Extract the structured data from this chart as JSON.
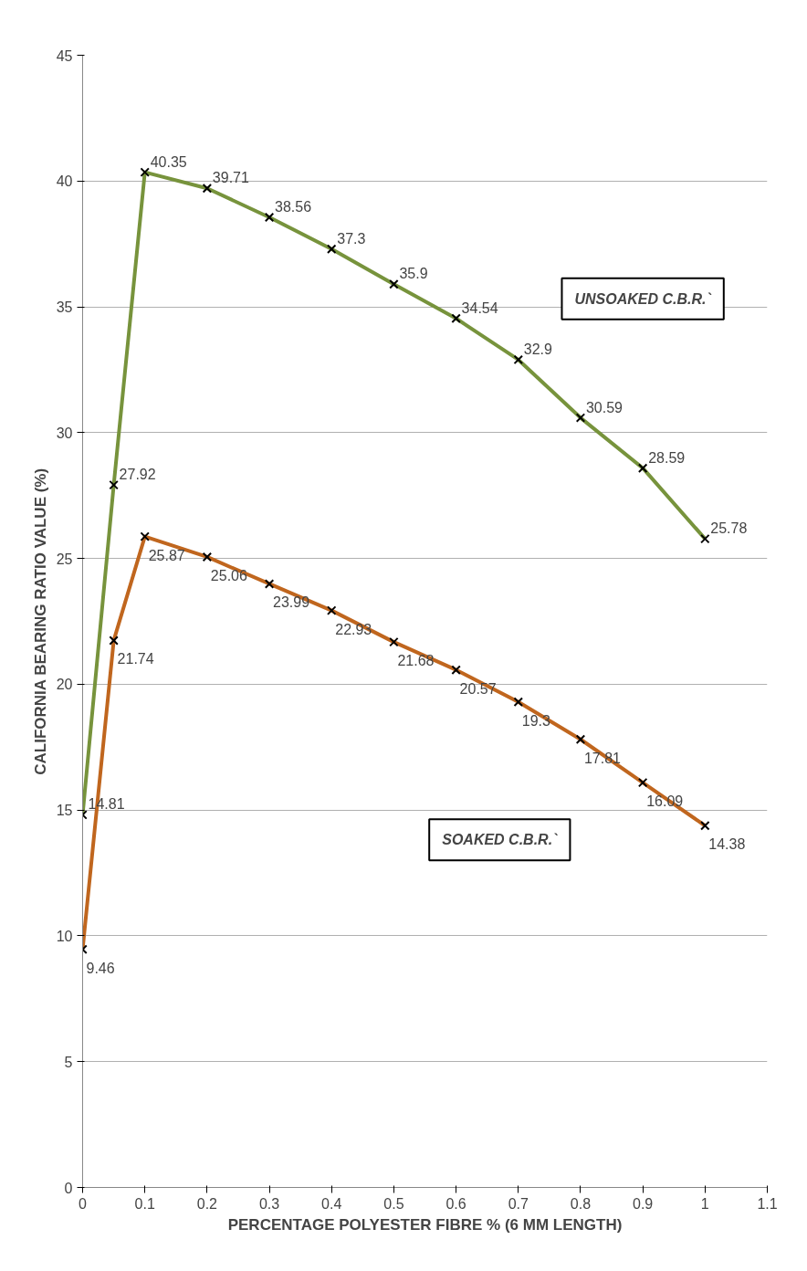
{
  "chart_data": {
    "type": "line",
    "xlabel": "PERCENTAGE POLYESTER FIBRE % (6 MM LENGTH)",
    "ylabel": "CALIFORNIA BEARING RATIO VALUE (%)",
    "x": [
      0,
      0.05,
      0.1,
      0.2,
      0.3,
      0.4,
      0.5,
      0.6,
      0.7,
      0.8,
      0.9,
      1
    ],
    "series": [
      {
        "name": "UNSOAKED C.B.R.`",
        "color": "#77933c",
        "values": [
          14.81,
          27.92,
          40.35,
          39.71,
          38.56,
          37.3,
          35.9,
          34.54,
          32.9,
          30.59,
          28.59,
          25.78
        ]
      },
      {
        "name": "SOAKED C.B.R.`",
        "color": "#c0661e",
        "values": [
          9.46,
          21.74,
          25.87,
          25.06,
          23.99,
          22.93,
          21.68,
          20.57,
          19.3,
          17.81,
          16.09,
          14.38
        ]
      }
    ],
    "xlim": [
      0,
      1.1
    ],
    "xticks": [
      0,
      0.1,
      0.2,
      0.3,
      0.4,
      0.5,
      0.6,
      0.7,
      0.8,
      0.9,
      1,
      1.1
    ],
    "ylim": [
      0,
      45
    ],
    "yticks": [
      0,
      5,
      10,
      15,
      20,
      25,
      30,
      35,
      40,
      45
    ],
    "grid": "y",
    "legend": false,
    "marker": "cross",
    "line_style": "solid",
    "data_labels": true
  }
}
